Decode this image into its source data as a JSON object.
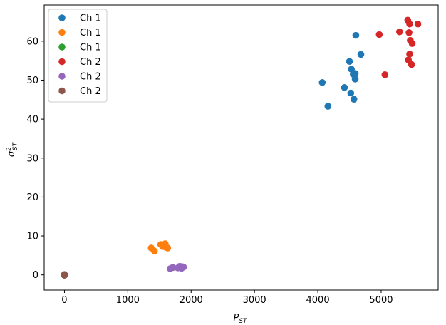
{
  "chart_data": {
    "type": "scatter",
    "xlabel": "P_ST",
    "ylabel": "σ²_ST",
    "xlim": [
      -320,
      5900
    ],
    "ylim": [
      -3.9,
      69.3
    ],
    "xticks": [
      0,
      1000,
      2000,
      3000,
      4000,
      5000
    ],
    "yticks": [
      0,
      10,
      20,
      30,
      40,
      50,
      60
    ],
    "legend_location": "top-left",
    "series": [
      {
        "name": "Ch 1",
        "color": "#1f77b4",
        "points": [
          [
            4070,
            49.4
          ],
          [
            4160,
            43.3
          ],
          [
            4420,
            48.1
          ],
          [
            4500,
            54.8
          ],
          [
            4520,
            46.7
          ],
          [
            4530,
            52.8
          ],
          [
            4560,
            51.5
          ],
          [
            4570,
            45.1
          ],
          [
            4590,
            51.7
          ],
          [
            4590,
            50.3
          ],
          [
            4600,
            61.5
          ],
          [
            4680,
            56.6
          ]
        ]
      },
      {
        "name": "Ch 1",
        "color": "#ff7f0e",
        "points": [
          [
            1370,
            6.9
          ],
          [
            1420,
            6.1
          ],
          [
            1520,
            7.8
          ],
          [
            1550,
            7.3
          ],
          [
            1580,
            7.6
          ],
          [
            1590,
            8.0
          ],
          [
            1600,
            7.1
          ],
          [
            1630,
            6.9
          ]
        ]
      },
      {
        "name": "Ch 1",
        "color": "#2ca02c",
        "points": [
          [
            0,
            0.0
          ],
          [
            0,
            0.05
          ],
          [
            0,
            -0.05
          ]
        ]
      },
      {
        "name": "Ch 2",
        "color": "#d62728",
        "points": [
          [
            4970,
            61.7
          ],
          [
            5060,
            51.4
          ],
          [
            5290,
            62.4
          ],
          [
            5420,
            65.4
          ],
          [
            5430,
            55.2
          ],
          [
            5440,
            62.2
          ],
          [
            5450,
            64.4
          ],
          [
            5450,
            56.7
          ],
          [
            5460,
            60.2
          ],
          [
            5480,
            54.0
          ],
          [
            5490,
            59.4
          ],
          [
            5580,
            64.4
          ]
        ]
      },
      {
        "name": "Ch 2",
        "color": "#9467bd",
        "points": [
          [
            1670,
            1.6
          ],
          [
            1710,
            1.9
          ],
          [
            1790,
            1.8
          ],
          [
            1820,
            2.2
          ],
          [
            1840,
            2.0
          ],
          [
            1850,
            1.7
          ],
          [
            1860,
            2.1
          ],
          [
            1880,
            2.0
          ]
        ]
      },
      {
        "name": "Ch 2",
        "color": "#8c564b",
        "points": [
          [
            0,
            0.0
          ],
          [
            0,
            0.1
          ],
          [
            0,
            -0.1
          ]
        ]
      }
    ]
  }
}
